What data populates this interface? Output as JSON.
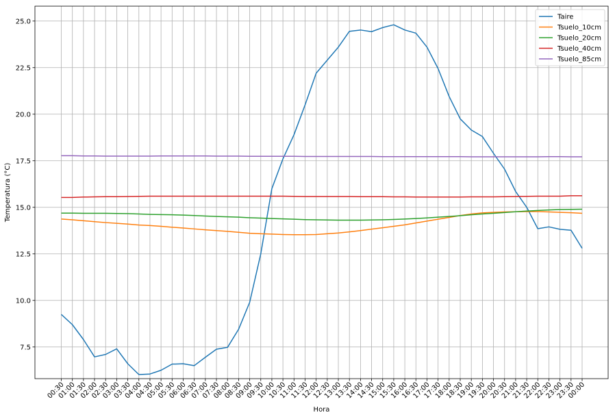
{
  "chart_data": {
    "type": "line",
    "xlabel": "Hora",
    "ylabel": "Temperatura (°C)",
    "ylim": [
      5.8,
      25.8
    ],
    "yticks": [
      7.5,
      10.0,
      12.5,
      15.0,
      17.5,
      20.0,
      22.5,
      25.0
    ],
    "ytick_labels": [
      "7.5",
      "10.0",
      "12.5",
      "15.0",
      "17.5",
      "20.0",
      "22.5",
      "25.0"
    ],
    "grid": true,
    "legend_position": "top-right",
    "x": [
      "00:30",
      "01:00",
      "01:30",
      "02:00",
      "02:30",
      "03:00",
      "03:30",
      "04:00",
      "04:30",
      "05:00",
      "05:30",
      "06:00",
      "06:30",
      "07:00",
      "07:30",
      "08:00",
      "08:30",
      "09:00",
      "09:30",
      "10:00",
      "10:30",
      "11:00",
      "11:30",
      "12:00",
      "12:30",
      "13:00",
      "13:30",
      "14:00",
      "14:30",
      "15:00",
      "15:30",
      "16:00",
      "16:30",
      "17:00",
      "17:30",
      "18:00",
      "18:30",
      "19:00",
      "19:30",
      "20:00",
      "20:30",
      "21:00",
      "21:30",
      "22:00",
      "22:30",
      "23:00",
      "23:30",
      "00:00"
    ],
    "series": [
      {
        "name": "Taire",
        "color": "#1f77b4",
        "values": [
          9.25,
          8.7,
          7.9,
          6.97,
          7.1,
          7.4,
          6.6,
          6.02,
          6.05,
          6.25,
          6.58,
          6.6,
          6.5,
          6.95,
          7.38,
          7.48,
          8.45,
          9.9,
          12.5,
          16.0,
          17.6,
          18.9,
          20.5,
          22.2,
          22.9,
          23.6,
          24.45,
          24.52,
          24.43,
          24.65,
          24.8,
          24.52,
          24.35,
          23.6,
          22.45,
          20.95,
          19.75,
          19.15,
          18.8,
          17.9,
          17.05,
          15.85,
          15.0,
          13.85,
          13.95,
          13.82,
          13.77,
          12.8
        ]
      },
      {
        "name": "Tsuelo_10cm",
        "color": "#ff7f0e",
        "values": [
          14.37,
          14.33,
          14.28,
          14.23,
          14.18,
          14.14,
          14.1,
          14.05,
          14.02,
          13.98,
          13.93,
          13.89,
          13.84,
          13.79,
          13.75,
          13.71,
          13.66,
          13.61,
          13.58,
          13.56,
          13.54,
          13.53,
          13.53,
          13.54,
          13.58,
          13.62,
          13.68,
          13.75,
          13.83,
          13.9,
          13.98,
          14.06,
          14.16,
          14.26,
          14.36,
          14.46,
          14.56,
          14.64,
          14.7,
          14.73,
          14.75,
          14.76,
          14.77,
          14.77,
          14.75,
          14.73,
          14.71,
          14.68
        ]
      },
      {
        "name": "Tsuelo_20cm",
        "color": "#2ca02c",
        "values": [
          14.69,
          14.69,
          14.68,
          14.68,
          14.68,
          14.67,
          14.66,
          14.64,
          14.62,
          14.61,
          14.6,
          14.58,
          14.56,
          14.53,
          14.51,
          14.49,
          14.47,
          14.44,
          14.42,
          14.4,
          14.38,
          14.36,
          14.34,
          14.33,
          14.32,
          14.31,
          14.31,
          14.31,
          14.32,
          14.33,
          14.35,
          14.37,
          14.4,
          14.43,
          14.47,
          14.51,
          14.55,
          14.6,
          14.64,
          14.68,
          14.72,
          14.76,
          14.8,
          14.83,
          14.86,
          14.88,
          14.89,
          14.9
        ]
      },
      {
        "name": "Tsuelo_40cm",
        "color": "#d62728",
        "values": [
          15.53,
          15.53,
          15.55,
          15.56,
          15.57,
          15.57,
          15.58,
          15.59,
          15.6,
          15.6,
          15.6,
          15.6,
          15.6,
          15.6,
          15.6,
          15.6,
          15.6,
          15.6,
          15.6,
          15.6,
          15.6,
          15.59,
          15.58,
          15.58,
          15.58,
          15.58,
          15.58,
          15.57,
          15.57,
          15.57,
          15.56,
          15.56,
          15.55,
          15.55,
          15.55,
          15.55,
          15.55,
          15.56,
          15.56,
          15.56,
          15.57,
          15.58,
          15.59,
          15.6,
          15.6,
          15.6,
          15.62,
          15.62
        ]
      },
      {
        "name": "Tsuelo_85cm",
        "color": "#9467bd",
        "values": [
          17.77,
          17.77,
          17.76,
          17.76,
          17.75,
          17.75,
          17.75,
          17.75,
          17.75,
          17.76,
          17.76,
          17.76,
          17.76,
          17.76,
          17.75,
          17.75,
          17.75,
          17.74,
          17.74,
          17.74,
          17.74,
          17.74,
          17.73,
          17.73,
          17.73,
          17.73,
          17.73,
          17.73,
          17.73,
          17.72,
          17.72,
          17.72,
          17.72,
          17.72,
          17.72,
          17.72,
          17.72,
          17.71,
          17.71,
          17.71,
          17.71,
          17.71,
          17.71,
          17.71,
          17.72,
          17.72,
          17.71,
          17.71
        ]
      }
    ]
  }
}
